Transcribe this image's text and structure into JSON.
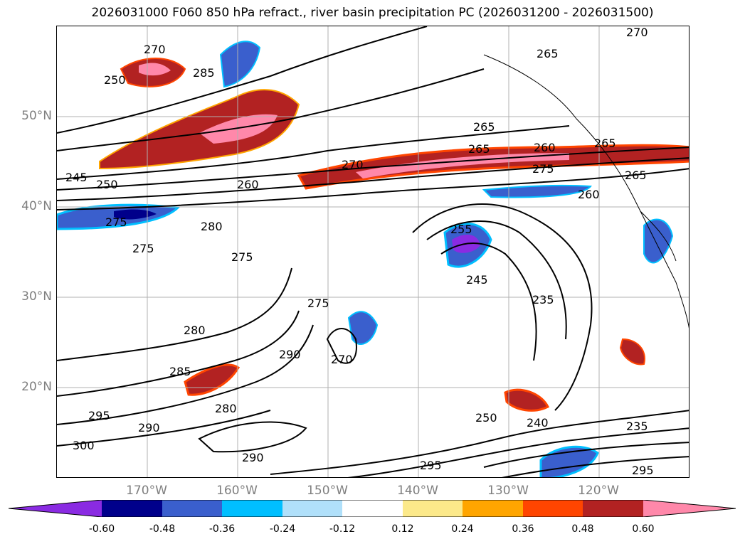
{
  "title": "2026031000 F060 850 hPa refract., river basin precipitation PC (2026031200 - 2026031500)",
  "colors": {
    "purple": "#8a2be2",
    "navy": "#00008b",
    "blue": "#3a5fcd",
    "deepsky": "#00bfff",
    "lightblue": "#b0e0fa",
    "white": "#ffffff",
    "lightyellow": "#fce98a",
    "orange": "#ffa500",
    "orangered": "#ff4500",
    "firebrick": "#b22222",
    "pink": "#ff88aa"
  },
  "chart_data": {
    "type": "contour_map",
    "projection": "lat-lon",
    "lat_range": [
      10,
      60
    ],
    "lon_range": [
      -180,
      -110
    ],
    "lat_ticks": [
      "50°N",
      "40°N",
      "30°N",
      "20°N"
    ],
    "lon_ticks": [
      "170°W",
      "160°W",
      "150°W",
      "140°W",
      "130°W",
      "120°W"
    ],
    "grid": true,
    "contour_labels": [
      "270",
      "250",
      "285",
      "265",
      "265",
      "265",
      "260",
      "275",
      "245",
      "250",
      "260",
      "270",
      "265",
      "265",
      "260",
      "270",
      "275",
      "280",
      "275",
      "275",
      "255",
      "245",
      "235",
      "275",
      "280",
      "290",
      "270",
      "285",
      "295",
      "290",
      "280",
      "250",
      "240",
      "235",
      "300",
      "290",
      "295",
      "295"
    ],
    "colorbar": {
      "labels": [
        "-0.60",
        "-0.48",
        "-0.36",
        "-0.24",
        "-0.12",
        "0.12",
        "0.24",
        "0.36",
        "0.48",
        "0.60"
      ],
      "extend": "both"
    }
  }
}
